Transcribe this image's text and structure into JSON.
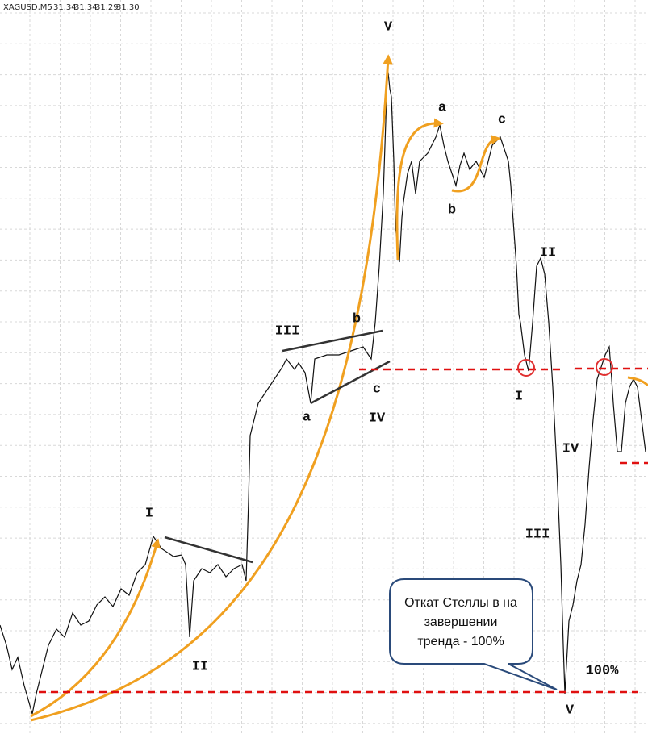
{
  "header": {
    "symbol": "XAGUSD,M5",
    "quotes": [
      "31.34",
      "31.34",
      "31.29",
      "31.30"
    ]
  },
  "labels": [
    "I",
    "II",
    "III",
    "a",
    "b",
    "c",
    "IV",
    "V",
    "a",
    "b",
    "c",
    "II",
    "I",
    "IV",
    "III",
    "100%",
    "V"
  ],
  "callout": {
    "lines": [
      "Откат Стеллы в на",
      "завершении",
      "тренда - 100%"
    ]
  }
}
